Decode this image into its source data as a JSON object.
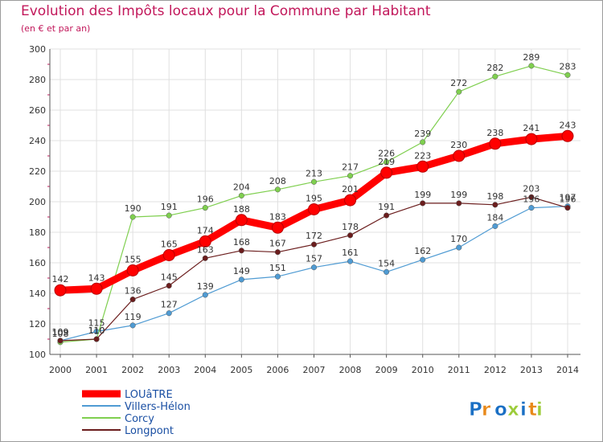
{
  "title": "Evolution des Impôts locaux pour la Commune par Habitant",
  "subtitle": "(en € et par an)",
  "brand": "Proxiti",
  "colors": {
    "title": "#c2185b",
    "axis": "#333333",
    "grid": "#e0e0e0",
    "frame": "#9b9b9b"
  },
  "chart_data": {
    "type": "line",
    "x": [
      "2000",
      "2001",
      "2002",
      "2003",
      "2004",
      "2005",
      "2006",
      "2007",
      "2008",
      "2009",
      "2010",
      "2011",
      "2012",
      "2013",
      "2014"
    ],
    "ylim": [
      100,
      300
    ],
    "yticks": [
      100,
      120,
      140,
      160,
      180,
      200,
      220,
      240,
      260,
      280,
      300
    ],
    "grid": true,
    "legend_position": "bottom-left",
    "series": [
      {
        "name": "LOUâTRE",
        "color": "#ff0000",
        "style": "thick",
        "values": [
          142,
          143,
          155,
          165,
          174,
          188,
          183,
          195,
          201,
          219,
          223,
          230,
          238,
          241,
          243
        ]
      },
      {
        "name": "Villers-Hélon",
        "color": "#4f9bd3",
        "style": "thin",
        "values": [
          109,
          115,
          119,
          127,
          139,
          149,
          151,
          157,
          161,
          154,
          162,
          170,
          184,
          196,
          197
        ]
      },
      {
        "name": "Corcy",
        "color": "#7fcf4f",
        "style": "thin",
        "values": [
          108,
          110,
          190,
          191,
          196,
          204,
          208,
          213,
          217,
          226,
          239,
          272,
          282,
          289,
          283
        ]
      },
      {
        "name": "Longpont",
        "color": "#6b1d1d",
        "style": "thin",
        "values": [
          109,
          110,
          136,
          145,
          163,
          168,
          167,
          172,
          178,
          191,
          199,
          199,
          198,
          203,
          196
        ]
      }
    ]
  }
}
